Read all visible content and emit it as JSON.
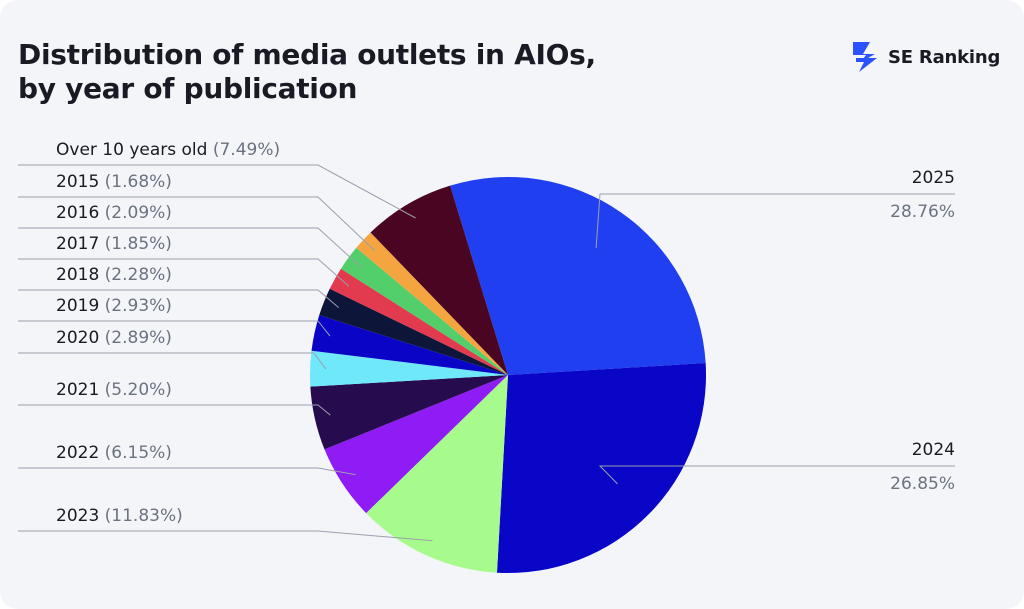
{
  "header": {
    "title_line1": "Distribution of media outlets in AIOs,",
    "title_line2": "by year of publication",
    "brand": "SE Ranking",
    "brand_color": "#2a52ff"
  },
  "chart_data": {
    "type": "pie",
    "title": "Distribution of media outlets in AIOs, by year of publication",
    "slices": [
      {
        "label": "2025",
        "value": 28.76,
        "pct_text": "28.76%",
        "color": "#1f3ff0"
      },
      {
        "label": "2024",
        "value": 26.85,
        "pct_text": "26.85%",
        "color": "#0a06c8"
      },
      {
        "label": "2023",
        "value": 11.83,
        "pct_text": "(11.83%)",
        "color": "#a7fb8c"
      },
      {
        "label": "2022",
        "value": 6.15,
        "pct_text": "(6.15%)",
        "color": "#8f1cf4"
      },
      {
        "label": "2021",
        "value": 5.2,
        "pct_text": "(5.20%)",
        "color": "#260b4e"
      },
      {
        "label": "2020",
        "value": 2.89,
        "pct_text": "(2.89%)",
        "color": "#6fe8fb"
      },
      {
        "label": "2019",
        "value": 2.93,
        "pct_text": "(2.93%)",
        "color": "#0a05c6"
      },
      {
        "label": "2018",
        "value": 2.28,
        "pct_text": "(2.28%)",
        "color": "#0d1638"
      },
      {
        "label": "2017",
        "value": 1.85,
        "pct_text": "(1.85%)",
        "color": "#e23a4e"
      },
      {
        "label": "2016",
        "value": 2.09,
        "pct_text": "(2.09%)",
        "color": "#52cf6b"
      },
      {
        "label": "2015",
        "value": 1.68,
        "pct_text": "(1.68%)",
        "color": "#f4a540"
      },
      {
        "label": "Over 10 years old",
        "value": 7.49,
        "pct_text": "(7.49%)",
        "color": "#4a0522"
      }
    ],
    "extra_slice_colors": {
      "sliver": "#d23845"
    },
    "legend_placement": "callout-labels"
  }
}
